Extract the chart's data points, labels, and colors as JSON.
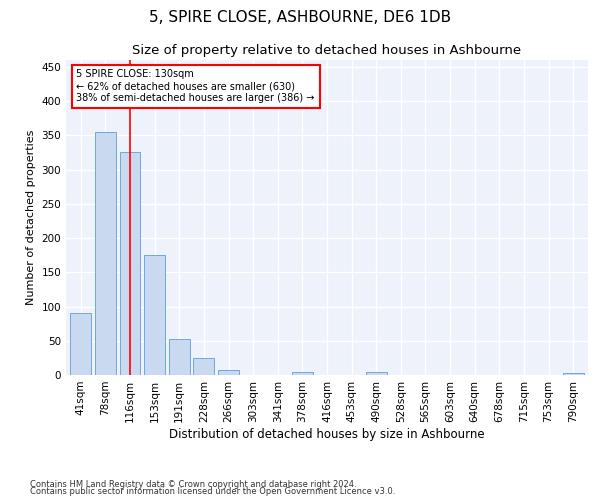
{
  "title": "5, SPIRE CLOSE, ASHBOURNE, DE6 1DB",
  "subtitle": "Size of property relative to detached houses in Ashbourne",
  "xlabel": "Distribution of detached houses by size in Ashbourne",
  "ylabel": "Number of detached properties",
  "bar_labels": [
    "41sqm",
    "78sqm",
    "116sqm",
    "153sqm",
    "191sqm",
    "228sqm",
    "266sqm",
    "303sqm",
    "341sqm",
    "378sqm",
    "416sqm",
    "453sqm",
    "490sqm",
    "528sqm",
    "565sqm",
    "603sqm",
    "640sqm",
    "678sqm",
    "715sqm",
    "753sqm",
    "790sqm"
  ],
  "bar_values": [
    90,
    355,
    325,
    175,
    52,
    25,
    8,
    0,
    0,
    5,
    0,
    0,
    4,
    0,
    0,
    0,
    0,
    0,
    0,
    0,
    3
  ],
  "bar_color": "#c9d9f0",
  "bar_edge_color": "#6fa8dc",
  "red_line_x": 2.0,
  "annotation_text_line1": "5 SPIRE CLOSE: 130sqm",
  "annotation_text_line2": "← 62% of detached houses are smaller (630)",
  "annotation_text_line3": "38% of semi-detached houses are larger (386) →",
  "annotation_box_color": "white",
  "annotation_box_edge": "red",
  "ylim": [
    0,
    460
  ],
  "yticks": [
    0,
    50,
    100,
    150,
    200,
    250,
    300,
    350,
    400,
    450
  ],
  "footer_line1": "Contains HM Land Registry data © Crown copyright and database right 2024.",
  "footer_line2": "Contains public sector information licensed under the Open Government Licence v3.0.",
  "bg_color": "#eef2fa",
  "grid_color": "white",
  "title_fontsize": 11,
  "subtitle_fontsize": 9.5,
  "xlabel_fontsize": 8.5,
  "ylabel_fontsize": 8,
  "tick_fontsize": 7.5,
  "annotation_fontsize": 7,
  "footer_fontsize": 6
}
